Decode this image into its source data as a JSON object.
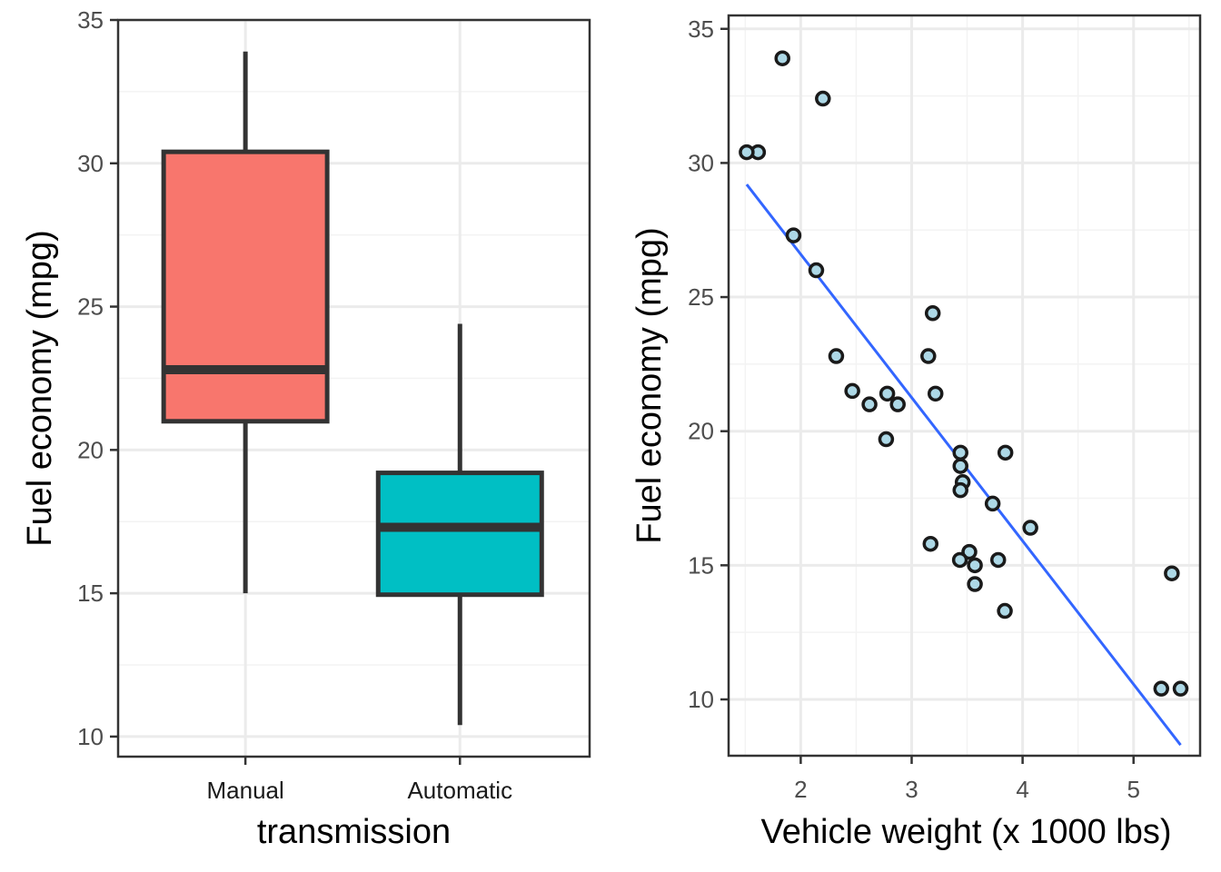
{
  "chart_data": [
    {
      "type": "box",
      "xlabel": "transmission",
      "ylabel": "Fuel economy (mpg)",
      "ylim": [
        9.3,
        35
      ],
      "yticks": [
        10,
        15,
        20,
        25,
        30,
        35
      ],
      "grid": true,
      "legend": "none",
      "categories": [
        "Manual",
        "Automatic"
      ],
      "boxes": [
        {
          "category": "Manual",
          "whisker_low": 15.0,
          "q1": 21.0,
          "median": 22.8,
          "q3": 30.4,
          "whisker_high": 33.9,
          "fill": "#F8766D"
        },
        {
          "category": "Automatic",
          "whisker_low": 10.4,
          "q1": 14.95,
          "median": 17.3,
          "q3": 19.2,
          "whisker_high": 24.4,
          "fill": "#00BFC4"
        }
      ],
      "colors": {
        "outline": "#333333",
        "grid_major": "#ebebeb",
        "grid_minor": "#f3f3f3",
        "panel_border": "#333333"
      }
    },
    {
      "type": "scatter",
      "xlabel": "Vehicle weight (x 1000 lbs)",
      "ylabel": "Fuel economy (mpg)",
      "xlim": [
        1.35,
        5.6
      ],
      "ylim": [
        7.9,
        35.5
      ],
      "xticks": [
        2,
        3,
        4,
        5
      ],
      "yticks": [
        10,
        15,
        20,
        25,
        30,
        35
      ],
      "grid": true,
      "legend": "none",
      "points": [
        {
          "x": 2.62,
          "y": 21.0
        },
        {
          "x": 2.875,
          "y": 21.0
        },
        {
          "x": 2.32,
          "y": 22.8
        },
        {
          "x": 3.215,
          "y": 21.4
        },
        {
          "x": 3.44,
          "y": 18.7
        },
        {
          "x": 3.46,
          "y": 18.1
        },
        {
          "x": 3.57,
          "y": 14.3
        },
        {
          "x": 3.19,
          "y": 24.4
        },
        {
          "x": 3.15,
          "y": 22.8
        },
        {
          "x": 3.44,
          "y": 19.2
        },
        {
          "x": 3.44,
          "y": 17.8
        },
        {
          "x": 4.07,
          "y": 16.4
        },
        {
          "x": 3.73,
          "y": 17.3
        },
        {
          "x": 3.78,
          "y": 15.2
        },
        {
          "x": 5.25,
          "y": 10.4
        },
        {
          "x": 5.424,
          "y": 10.4
        },
        {
          "x": 5.345,
          "y": 14.7
        },
        {
          "x": 2.2,
          "y": 32.4
        },
        {
          "x": 1.615,
          "y": 30.4
        },
        {
          "x": 1.835,
          "y": 33.9
        },
        {
          "x": 2.465,
          "y": 21.5
        },
        {
          "x": 3.52,
          "y": 15.5
        },
        {
          "x": 3.435,
          "y": 15.2
        },
        {
          "x": 3.84,
          "y": 13.3
        },
        {
          "x": 3.845,
          "y": 19.2
        },
        {
          "x": 1.935,
          "y": 27.3
        },
        {
          "x": 2.14,
          "y": 26.0
        },
        {
          "x": 1.513,
          "y": 30.4
        },
        {
          "x": 3.17,
          "y": 15.8
        },
        {
          "x": 2.77,
          "y": 19.7
        },
        {
          "x": 3.57,
          "y": 15.0
        },
        {
          "x": 2.78,
          "y": 21.4
        }
      ],
      "trend_line": {
        "x": [
          1.513,
          5.424
        ],
        "y": [
          29.2,
          8.3
        ]
      },
      "colors": {
        "point_fill": "#ADD8E6",
        "point_stroke": "#1a1a1a",
        "line": "#3366FF",
        "grid_major": "#ebebeb",
        "grid_minor": "#f3f3f3",
        "panel_border": "#333333"
      }
    }
  ]
}
